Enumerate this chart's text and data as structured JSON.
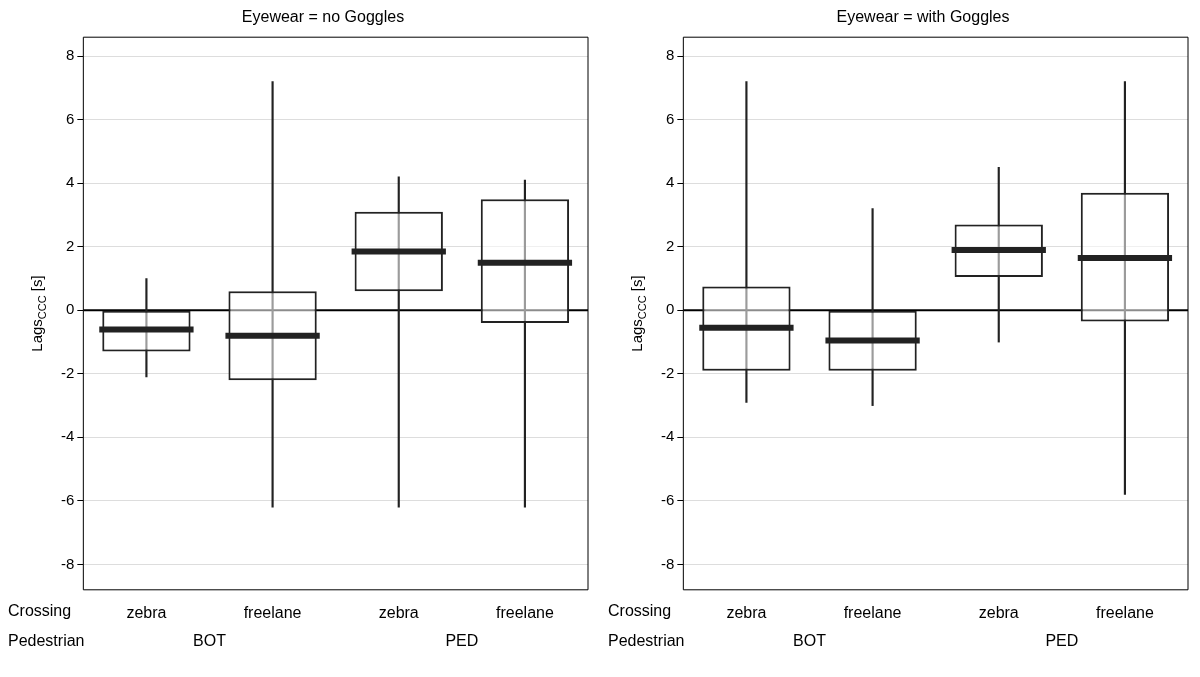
{
  "chart_data": [
    {
      "type": "box",
      "title": "Eyewear = no Goggles",
      "ylabel": "Lags$_{CCC}$ [s]",
      "categories": [
        "zebra",
        "freelane",
        "zebra",
        "freelane"
      ],
      "color": "#222222",
      "boxes": [
        {
          "low": -2.1,
          "q1": -1.3,
          "median": -0.6,
          "q3": 0.0,
          "high": 1.0
        },
        {
          "low": -6.2,
          "q1": -2.2,
          "median": -0.8,
          "q3": 0.6,
          "high": 7.2
        },
        {
          "low": -6.2,
          "q1": 0.6,
          "median": 1.85,
          "q3": 3.1,
          "high": 4.2
        },
        {
          "low": -6.2,
          "q1": -0.4,
          "median": 1.5,
          "q3": 3.5,
          "high": 4.1
        }
      ],
      "ylim": [
        -8.8,
        8.6
      ],
      "yticks": [
        -8,
        -6,
        -4,
        -2,
        0,
        2,
        4,
        6,
        8
      ],
      "grid": "y",
      "ref_lines": [
        {
          "axis": "y",
          "value": 0
        }
      ],
      "annotations": [
        "Crossing",
        "Pedestrian",
        "BOT",
        "PED"
      ]
    },
    {
      "type": "box",
      "title": "Eyewear = with Goggles",
      "ylabel": "Lags$_{CCC}$ [s]",
      "categories": [
        "zebra",
        "freelane",
        "zebra",
        "freelane"
      ],
      "color": "#222222",
      "boxes": [
        {
          "low": -2.9,
          "q1": -1.9,
          "median": -0.55,
          "q3": 0.75,
          "high": 7.2
        },
        {
          "low": -3.0,
          "q1": -1.9,
          "median": -0.95,
          "q3": 0.0,
          "high": 3.2
        },
        {
          "low": -1.0,
          "q1": 1.05,
          "median": 1.9,
          "q3": 2.7,
          "high": 4.5
        },
        {
          "low": -5.8,
          "q1": -0.35,
          "median": 1.65,
          "q3": 3.7,
          "high": 7.2
        }
      ],
      "ylim": [
        -8.8,
        8.6
      ],
      "yticks": [
        -8,
        -6,
        -4,
        -2,
        0,
        2,
        4,
        6,
        8
      ],
      "grid": "y",
      "ref_lines": [
        {
          "axis": "y",
          "value": 0
        }
      ],
      "annotations": [
        "Crossing",
        "Pedestrian",
        "BOT",
        "PED"
      ]
    }
  ]
}
